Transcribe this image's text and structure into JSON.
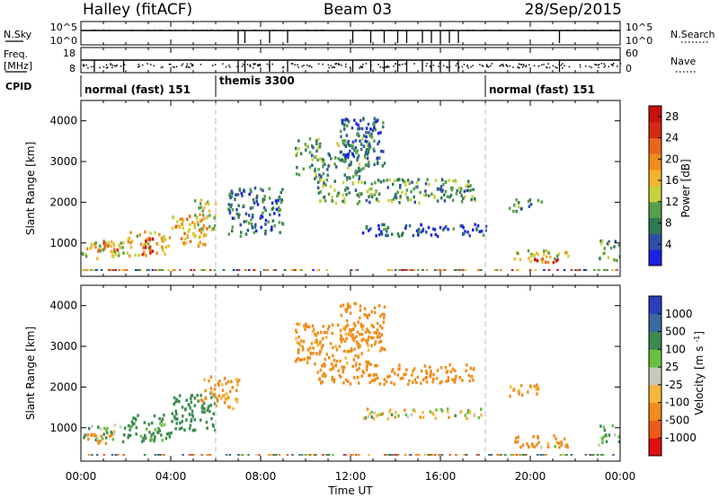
{
  "header": {
    "station": "Halley (fitACF)",
    "beam": "Beam 03",
    "date": "28/Sep/2015"
  },
  "top_panels": {
    "nsky_label": "N.Sky",
    "nsky_ticks": [
      "10^5",
      "10^0"
    ],
    "nsearch_label": "N.Search",
    "nsearch_ticks": [
      "10^5",
      "10^0"
    ],
    "freq_label_1": "Freq.",
    "freq_label_2": "[MHz]",
    "freq_ticks": [
      "18",
      "8"
    ],
    "nave_label": "Nave",
    "nave_ticks": [
      "60",
      "0"
    ],
    "cpid_label": "CPID",
    "cpid_segments": [
      {
        "label": "normal (fast) 151",
        "start": 0,
        "end": 6
      },
      {
        "label": "themis 3300",
        "start": 6,
        "end": 18
      },
      {
        "label": "normal (fast) 151",
        "start": 18,
        "end": 24
      }
    ]
  },
  "power_panel": {
    "ylabel": "Slant Range [km]",
    "yticks": [
      "1000",
      "2000",
      "3000",
      "4000"
    ],
    "colorbar_label": "Power [dB]",
    "colorbar_ticks": [
      "4",
      "8",
      "12",
      "16",
      "20",
      "24",
      "28"
    ],
    "colorbar_colors": [
      "#1a22e0",
      "#2d4fa8",
      "#2f7a55",
      "#56a04a",
      "#c9d13a",
      "#f2b52e",
      "#f08c1a",
      "#e8661a",
      "#d42a12",
      "#c8100c"
    ]
  },
  "velocity_panel": {
    "ylabel": "Slant Range [km]",
    "yticks": [
      "1000",
      "2000",
      "3000",
      "4000"
    ],
    "colorbar_label": "Velocity [m s^-1]",
    "colorbar_ticks": [
      "-1000",
      "-500",
      "-100",
      "-25",
      "25",
      "100",
      "500",
      "1000"
    ],
    "colorbar_colors": [
      "#e01010",
      "#ee5a18",
      "#f08c1a",
      "#f4b83a",
      "#c8c8c0",
      "#6ac040",
      "#3d8a50",
      "#3a6aa0",
      "#2a40b8"
    ]
  },
  "xaxis": {
    "ticks": [
      "00:00",
      "04:00",
      "08:00",
      "12:00",
      "16:00",
      "20:00",
      "00:00"
    ],
    "label": "Time UT"
  },
  "chart_data": [
    {
      "type": "heatmap",
      "title": "Beam 03",
      "xlabel": "Time UT",
      "ylabel": "Slant Range [km]",
      "colorbar": "Power [dB]",
      "xlim": [
        0,
        24
      ],
      "ylim": [
        180,
        4500
      ],
      "zlim": [
        0,
        30
      ],
      "regions": [
        {
          "t0": 0.0,
          "t1": 2.0,
          "r0": 650,
          "r1": 1100,
          "v": 14
        },
        {
          "t0": 0.7,
          "t1": 1.6,
          "r0": 800,
          "r1": 1050,
          "v": 22
        },
        {
          "t0": 2.0,
          "t1": 4.0,
          "r0": 700,
          "r1": 1350,
          "v": 16
        },
        {
          "t0": 2.6,
          "t1": 3.2,
          "r0": 750,
          "r1": 1150,
          "v": 24
        },
        {
          "t0": 4.0,
          "t1": 5.6,
          "r0": 950,
          "r1": 1700,
          "v": 18
        },
        {
          "t0": 5.0,
          "t1": 6.0,
          "r0": 1200,
          "r1": 2150,
          "v": 14
        },
        {
          "t0": 6.5,
          "t1": 9.0,
          "r0": 1200,
          "r1": 2400,
          "v": 7
        },
        {
          "t0": 9.5,
          "t1": 12.8,
          "r0": 2600,
          "r1": 3600,
          "v": 9
        },
        {
          "t0": 11.5,
          "t1": 13.5,
          "r0": 2900,
          "r1": 4100,
          "v": 6
        },
        {
          "t0": 10.5,
          "t1": 17.5,
          "r0": 2000,
          "r1": 2600,
          "v": 10
        },
        {
          "t0": 12.5,
          "t1": 18.0,
          "r0": 1200,
          "r1": 1500,
          "v": 5
        },
        {
          "t0": 19.0,
          "t1": 20.5,
          "r0": 1800,
          "r1": 2100,
          "v": 8
        },
        {
          "t0": 19.2,
          "t1": 21.7,
          "r0": 550,
          "r1": 850,
          "v": 14
        },
        {
          "t0": 20.0,
          "t1": 21.2,
          "r0": 500,
          "r1": 650,
          "v": 26
        },
        {
          "t0": 23.0,
          "t1": 24.0,
          "r0": 600,
          "r1": 1100,
          "v": 10
        }
      ]
    },
    {
      "type": "heatmap",
      "xlabel": "Time UT",
      "ylabel": "Slant Range [km]",
      "colorbar": "Velocity [m s^-1]",
      "xlim": [
        0,
        24
      ],
      "ylim": [
        180,
        4500
      ],
      "zlim": [
        -1000,
        1000
      ],
      "regions": [
        {
          "t0": 0.0,
          "t1": 2.0,
          "r0": 650,
          "r1": 1100,
          "v": 100
        },
        {
          "t0": 0.2,
          "t1": 1.4,
          "r0": 650,
          "r1": 900,
          "v": -300
        },
        {
          "t0": 2.0,
          "t1": 4.0,
          "r0": 700,
          "r1": 1350,
          "v": 200
        },
        {
          "t0": 4.0,
          "t1": 6.0,
          "r0": 950,
          "r1": 1900,
          "v": 300
        },
        {
          "t0": 5.3,
          "t1": 7.0,
          "r0": 1500,
          "r1": 2300,
          "v": -150
        },
        {
          "t0": 9.5,
          "t1": 12.8,
          "r0": 2600,
          "r1": 3600,
          "v": -200
        },
        {
          "t0": 11.5,
          "t1": 13.5,
          "r0": 2900,
          "r1": 4100,
          "v": -250
        },
        {
          "t0": 10.5,
          "t1": 17.5,
          "r0": 2100,
          "r1": 2600,
          "v": -250
        },
        {
          "t0": 12.5,
          "t1": 18.0,
          "r0": 1250,
          "r1": 1500,
          "v": 0
        },
        {
          "t0": 19.0,
          "t1": 20.5,
          "r0": 1800,
          "r1": 2100,
          "v": -150
        },
        {
          "t0": 19.2,
          "t1": 21.7,
          "r0": 550,
          "r1": 850,
          "v": -300
        },
        {
          "t0": 20.2,
          "t1": 21.3,
          "r0": 520,
          "r1": 650,
          "v": 0
        },
        {
          "t0": 23.0,
          "t1": 24.0,
          "r0": 600,
          "r1": 1100,
          "v": 100
        }
      ]
    }
  ]
}
